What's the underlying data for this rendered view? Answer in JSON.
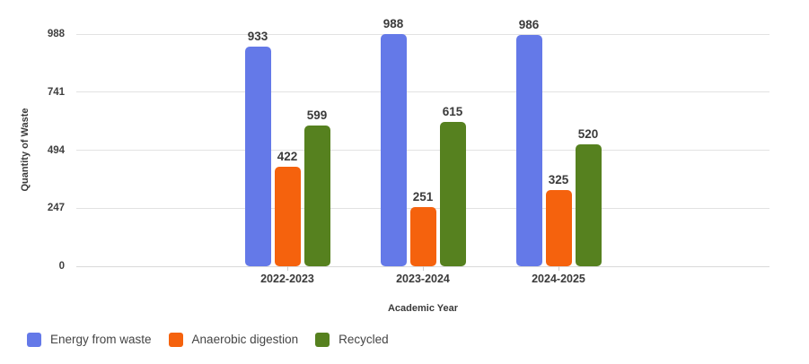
{
  "chart_data": {
    "type": "bar",
    "title": "",
    "categories": [
      "2022-2023",
      "2023-2024",
      "2024-2025"
    ],
    "series": [
      {
        "name": "Energy from waste",
        "color": "#6479E8",
        "values": [
          933,
          988,
          986
        ]
      },
      {
        "name": "Anaerobic digestion",
        "color": "#F5620D",
        "values": [
          422,
          251,
          325
        ]
      },
      {
        "name": "Recycled",
        "color": "#56811F",
        "values": [
          599,
          615,
          520
        ]
      }
    ],
    "xlabel": "Academic Year",
    "ylabel": "Quantity of Waste",
    "yticks": [
      0,
      247,
      494,
      741,
      988
    ],
    "ylim": [
      0,
      988
    ],
    "grid": true,
    "value_labels": [
      [
        "933",
        "988",
        "986"
      ],
      [
        "422",
        "251",
        "325"
      ],
      [
        "599",
        "615",
        "520"
      ]
    ],
    "legend_position": "bottom-left",
    "colors": {
      "grid": "#e2e2e2",
      "tick_text": "#404040",
      "label_text": "#3a3a3a",
      "legend_text": "#444444"
    }
  }
}
